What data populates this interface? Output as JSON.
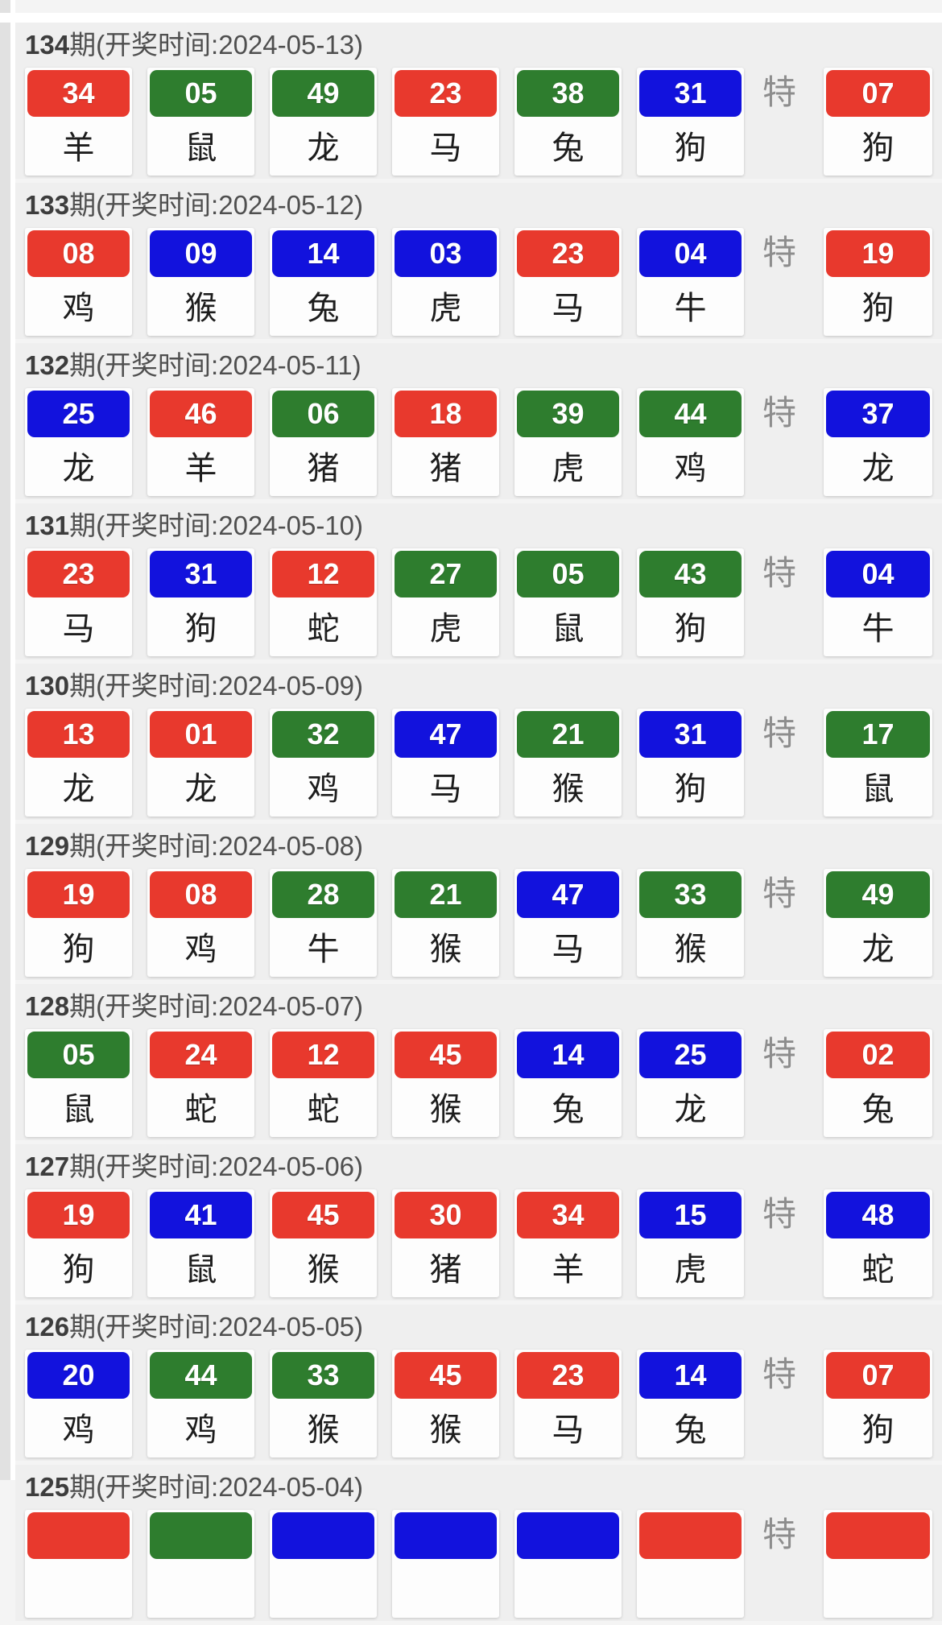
{
  "page": {
    "background": "#efefef",
    "ball_colors": {
      "red": "#e8392d",
      "green": "#2e7d2e",
      "blue": "#1212dd"
    },
    "text_colors": {
      "header": "#4f4f4f",
      "zodiac": "#1d1d1d",
      "special_marker": "#8d8d8d"
    }
  },
  "labels": {
    "special_marker": "特",
    "header_prefix": "期(开奖时间:",
    "header_suffix": ")"
  },
  "draws": [
    {
      "period": "134",
      "date": "2024-05-13",
      "numbers": [
        {
          "value": "34",
          "color": "red",
          "zodiac": "羊"
        },
        {
          "value": "05",
          "color": "green",
          "zodiac": "鼠"
        },
        {
          "value": "49",
          "color": "green",
          "zodiac": "龙"
        },
        {
          "value": "23",
          "color": "red",
          "zodiac": "马"
        },
        {
          "value": "38",
          "color": "green",
          "zodiac": "兔"
        },
        {
          "value": "31",
          "color": "blue",
          "zodiac": "狗"
        }
      ],
      "special": {
        "value": "07",
        "color": "red",
        "zodiac": "狗"
      }
    },
    {
      "period": "133",
      "date": "2024-05-12",
      "numbers": [
        {
          "value": "08",
          "color": "red",
          "zodiac": "鸡"
        },
        {
          "value": "09",
          "color": "blue",
          "zodiac": "猴"
        },
        {
          "value": "14",
          "color": "blue",
          "zodiac": "兔"
        },
        {
          "value": "03",
          "color": "blue",
          "zodiac": "虎"
        },
        {
          "value": "23",
          "color": "red",
          "zodiac": "马"
        },
        {
          "value": "04",
          "color": "blue",
          "zodiac": "牛"
        }
      ],
      "special": {
        "value": "19",
        "color": "red",
        "zodiac": "狗"
      }
    },
    {
      "period": "132",
      "date": "2024-05-11",
      "numbers": [
        {
          "value": "25",
          "color": "blue",
          "zodiac": "龙"
        },
        {
          "value": "46",
          "color": "red",
          "zodiac": "羊"
        },
        {
          "value": "06",
          "color": "green",
          "zodiac": "猪"
        },
        {
          "value": "18",
          "color": "red",
          "zodiac": "猪"
        },
        {
          "value": "39",
          "color": "green",
          "zodiac": "虎"
        },
        {
          "value": "44",
          "color": "green",
          "zodiac": "鸡"
        }
      ],
      "special": {
        "value": "37",
        "color": "blue",
        "zodiac": "龙"
      }
    },
    {
      "period": "131",
      "date": "2024-05-10",
      "numbers": [
        {
          "value": "23",
          "color": "red",
          "zodiac": "马"
        },
        {
          "value": "31",
          "color": "blue",
          "zodiac": "狗"
        },
        {
          "value": "12",
          "color": "red",
          "zodiac": "蛇"
        },
        {
          "value": "27",
          "color": "green",
          "zodiac": "虎"
        },
        {
          "value": "05",
          "color": "green",
          "zodiac": "鼠"
        },
        {
          "value": "43",
          "color": "green",
          "zodiac": "狗"
        }
      ],
      "special": {
        "value": "04",
        "color": "blue",
        "zodiac": "牛"
      }
    },
    {
      "period": "130",
      "date": "2024-05-09",
      "numbers": [
        {
          "value": "13",
          "color": "red",
          "zodiac": "龙"
        },
        {
          "value": "01",
          "color": "red",
          "zodiac": "龙"
        },
        {
          "value": "32",
          "color": "green",
          "zodiac": "鸡"
        },
        {
          "value": "47",
          "color": "blue",
          "zodiac": "马"
        },
        {
          "value": "21",
          "color": "green",
          "zodiac": "猴"
        },
        {
          "value": "31",
          "color": "blue",
          "zodiac": "狗"
        }
      ],
      "special": {
        "value": "17",
        "color": "green",
        "zodiac": "鼠"
      }
    },
    {
      "period": "129",
      "date": "2024-05-08",
      "numbers": [
        {
          "value": "19",
          "color": "red",
          "zodiac": "狗"
        },
        {
          "value": "08",
          "color": "red",
          "zodiac": "鸡"
        },
        {
          "value": "28",
          "color": "green",
          "zodiac": "牛"
        },
        {
          "value": "21",
          "color": "green",
          "zodiac": "猴"
        },
        {
          "value": "47",
          "color": "blue",
          "zodiac": "马"
        },
        {
          "value": "33",
          "color": "green",
          "zodiac": "猴"
        }
      ],
      "special": {
        "value": "49",
        "color": "green",
        "zodiac": "龙"
      }
    },
    {
      "period": "128",
      "date": "2024-05-07",
      "numbers": [
        {
          "value": "05",
          "color": "green",
          "zodiac": "鼠"
        },
        {
          "value": "24",
          "color": "red",
          "zodiac": "蛇"
        },
        {
          "value": "12",
          "color": "red",
          "zodiac": "蛇"
        },
        {
          "value": "45",
          "color": "red",
          "zodiac": "猴"
        },
        {
          "value": "14",
          "color": "blue",
          "zodiac": "兔"
        },
        {
          "value": "25",
          "color": "blue",
          "zodiac": "龙"
        }
      ],
      "special": {
        "value": "02",
        "color": "red",
        "zodiac": "兔"
      }
    },
    {
      "period": "127",
      "date": "2024-05-06",
      "numbers": [
        {
          "value": "19",
          "color": "red",
          "zodiac": "狗"
        },
        {
          "value": "41",
          "color": "blue",
          "zodiac": "鼠"
        },
        {
          "value": "45",
          "color": "red",
          "zodiac": "猴"
        },
        {
          "value": "30",
          "color": "red",
          "zodiac": "猪"
        },
        {
          "value": "34",
          "color": "red",
          "zodiac": "羊"
        },
        {
          "value": "15",
          "color": "blue",
          "zodiac": "虎"
        }
      ],
      "special": {
        "value": "48",
        "color": "blue",
        "zodiac": "蛇"
      }
    },
    {
      "period": "126",
      "date": "2024-05-05",
      "numbers": [
        {
          "value": "20",
          "color": "blue",
          "zodiac": "鸡"
        },
        {
          "value": "44",
          "color": "green",
          "zodiac": "鸡"
        },
        {
          "value": "33",
          "color": "green",
          "zodiac": "猴"
        },
        {
          "value": "45",
          "color": "red",
          "zodiac": "猴"
        },
        {
          "value": "23",
          "color": "red",
          "zodiac": "马"
        },
        {
          "value": "14",
          "color": "blue",
          "zodiac": "兔"
        }
      ],
      "special": {
        "value": "07",
        "color": "red",
        "zodiac": "狗"
      }
    },
    {
      "period": "125",
      "date": "2024-05-04",
      "numbers": [
        {
          "value": "",
          "color": "red",
          "zodiac": ""
        },
        {
          "value": "",
          "color": "green",
          "zodiac": ""
        },
        {
          "value": "",
          "color": "blue",
          "zodiac": ""
        },
        {
          "value": "",
          "color": "blue",
          "zodiac": ""
        },
        {
          "value": "",
          "color": "blue",
          "zodiac": ""
        },
        {
          "value": "",
          "color": "red",
          "zodiac": ""
        }
      ],
      "special": {
        "value": "",
        "color": "red",
        "zodiac": ""
      }
    }
  ]
}
